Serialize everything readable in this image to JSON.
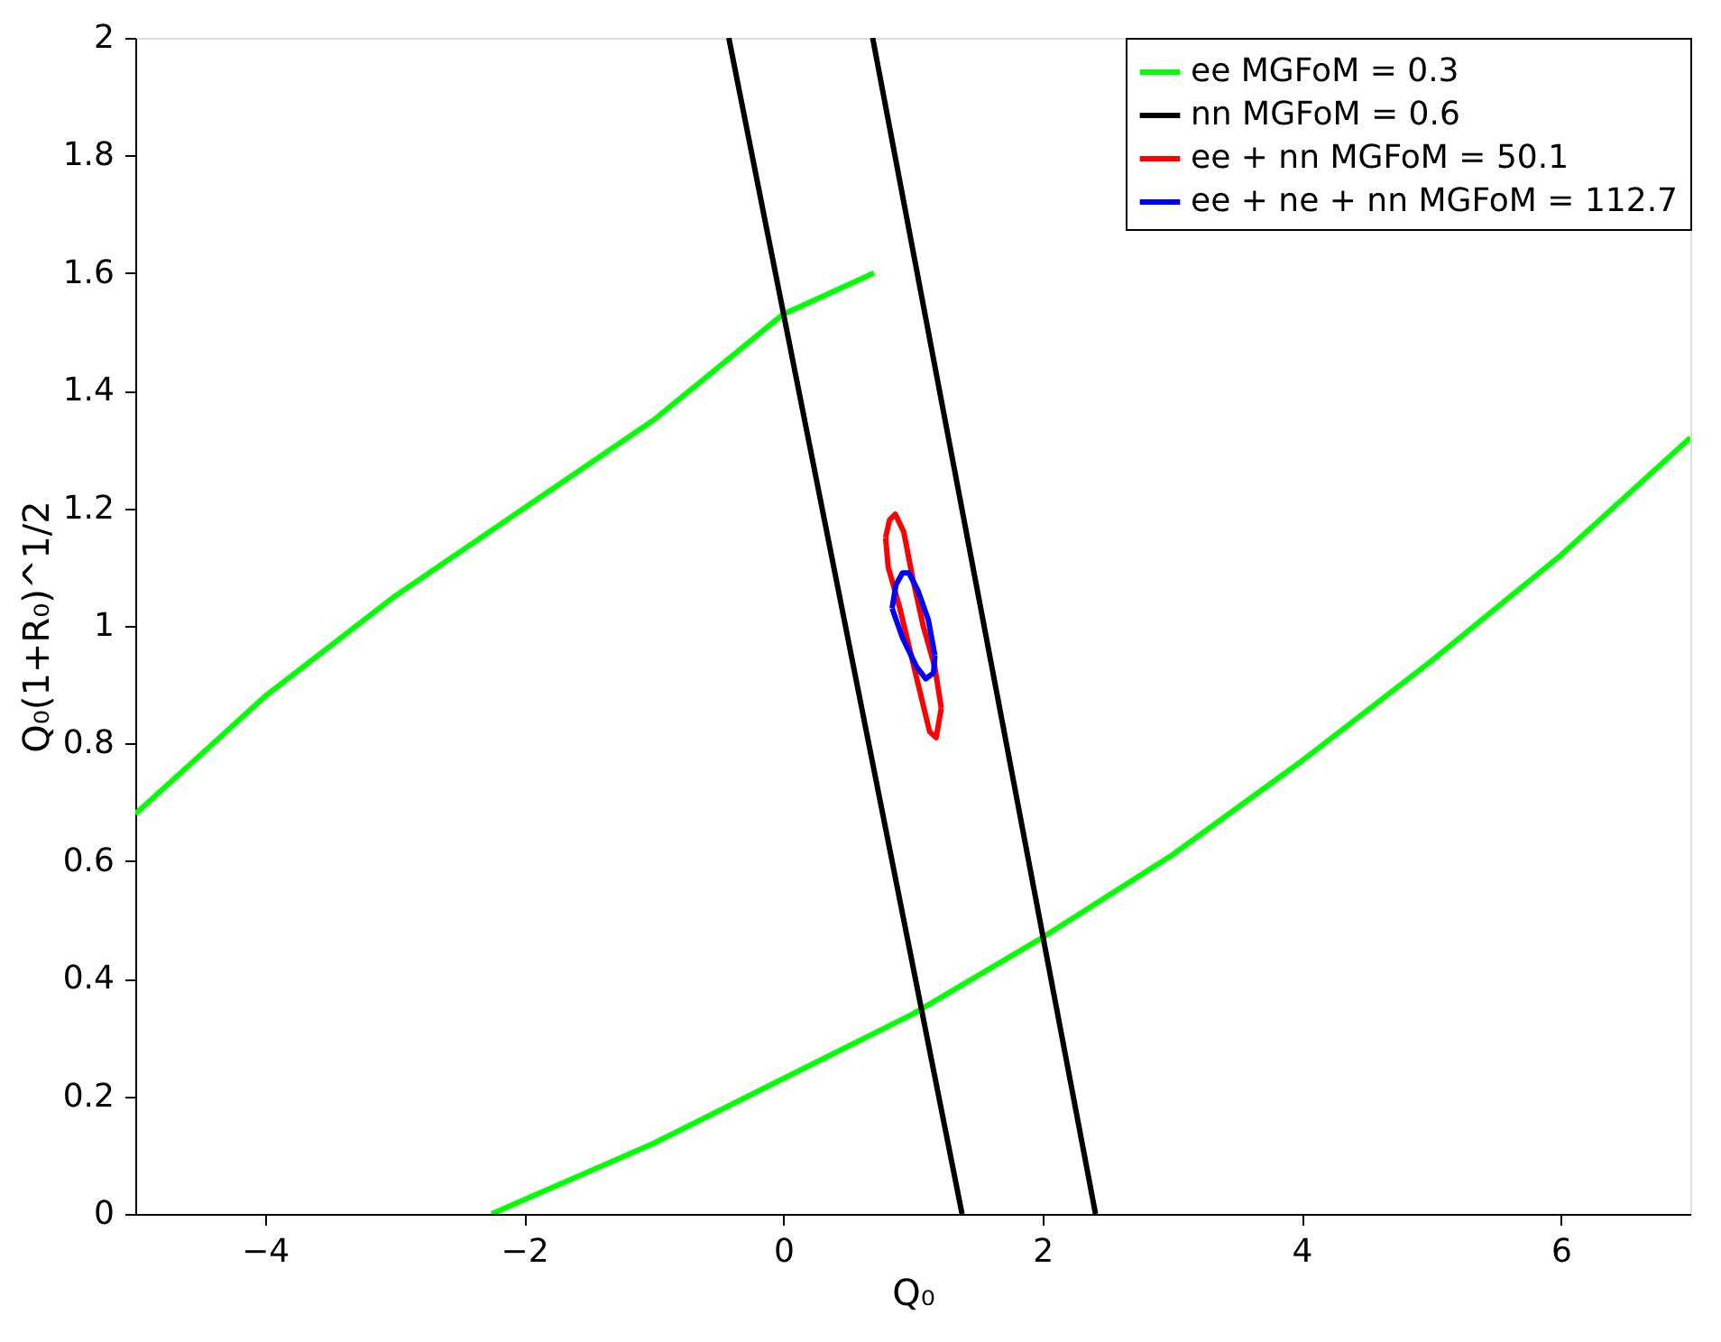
{
  "chart_data": {
    "type": "line",
    "xlabel": "Q₀",
    "ylabel": "Q₀(1+R₀)^1/2",
    "xlim": [
      -5,
      7
    ],
    "ylim": [
      0,
      2
    ],
    "xticks": [
      -4,
      -2,
      0,
      2,
      4,
      6
    ],
    "yticks": [
      0,
      0.2,
      0.4,
      0.6,
      0.8,
      1,
      1.2,
      1.4,
      1.6,
      1.8,
      2
    ],
    "grid": false,
    "legend": "top right",
    "line_style": "solid",
    "marker": "none",
    "series": [
      {
        "name": "ee MGFoM = 0.3",
        "color": "#00ff00",
        "x": [
          -5,
          -4,
          -3,
          -2,
          -1,
          0,
          0.7,
          null,
          -2.25,
          -1,
          0,
          1,
          2,
          3,
          4,
          5,
          6,
          7
        ],
        "values": [
          0.68,
          0.88,
          1.05,
          1.2,
          1.35,
          1.53,
          1.6,
          null,
          0,
          0.12,
          0.23,
          0.34,
          0.47,
          0.61,
          0.77,
          0.94,
          1.12,
          1.32
        ]
      },
      {
        "name": "nn MGFoM = 0.6",
        "color": "#000000",
        "x": [
          -0.42,
          1.38,
          null,
          0.69,
          2.41
        ],
        "values": [
          2,
          0,
          null,
          2,
          0
        ]
      },
      {
        "name": "ee + nn MGFoM = 50.1",
        "color": "#ff0000",
        "x": [
          0.79,
          0.82,
          0.865,
          0.93,
          1.0,
          1.08,
          1.17,
          1.22,
          null,
          0.79,
          0.81,
          0.9,
          1.02,
          1.13,
          1.18,
          1.22
        ],
        "values": [
          1.15,
          1.18,
          1.19,
          1.16,
          1.08,
          1.0,
          0.93,
          0.86,
          null,
          1.15,
          1.1,
          1.03,
          0.92,
          0.82,
          0.81,
          0.86
        ]
      },
      {
        "name": "ee + ne + nn MGFoM = 112.7",
        "color": "#0000ff",
        "x": [
          0.84,
          0.87,
          0.92,
          0.97,
          1.04,
          1.12,
          1.17,
          null,
          0.84,
          0.92,
          1.03,
          1.1,
          1.16,
          1.17
        ],
        "values": [
          1.03,
          1.07,
          1.09,
          1.09,
          1.06,
          1.01,
          0.95,
          null,
          1.03,
          0.98,
          0.93,
          0.91,
          0.92,
          0.95
        ]
      }
    ]
  }
}
